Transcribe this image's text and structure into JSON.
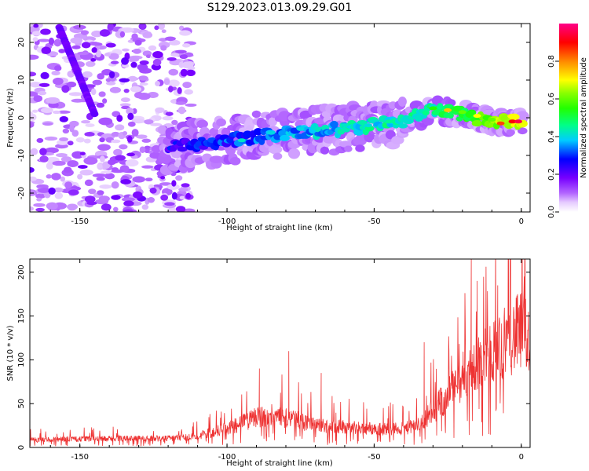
{
  "title": "S129.2023.013.09.29.G01",
  "chart_data": [
    {
      "type": "heatmap",
      "xlabel": "Height of straight line (km)",
      "ylabel": "Frequency (Hz)",
      "xlim": [
        -167,
        3
      ],
      "ylim": [
        -25,
        25
      ],
      "xticks": [
        -150,
        -100,
        -50,
        0
      ],
      "yticks": [
        -20,
        -10,
        0,
        10,
        20
      ],
      "colorbar": {
        "label": "Normalized spectral amplitude",
        "ticks": [
          0,
          0.2,
          0.4,
          0.6,
          0.8
        ],
        "range": [
          0,
          1
        ],
        "colors": [
          "#ffffff",
          "#e6ccff",
          "#8800ff",
          "#0000ff",
          "#00ccff",
          "#00ff66",
          "#66ff00",
          "#ffff00",
          "#ff8800",
          "#ff0000",
          "#ff0088"
        ]
      },
      "ridge": {
        "description_points_x": [
          -120,
          -100,
          -80,
          -60,
          -40,
          -30,
          -20,
          -10,
          -5,
          0
        ],
        "description_points_y": [
          -8,
          -6,
          -4,
          -3,
          -1,
          2,
          1,
          -1,
          -1,
          -1
        ],
        "peak_amplitude": 0.95
      },
      "diagonal_streak": {
        "x": [
          -157,
          -145
        ],
        "y": [
          24,
          1
        ]
      }
    },
    {
      "type": "line",
      "xlabel": "Height of straight line (km)",
      "ylabel": "SNR (10 * v/v)",
      "xlim": [
        -167,
        3
      ],
      "ylim": [
        0,
        215
      ],
      "xticks": [
        -150,
        -100,
        -50,
        0
      ],
      "yticks": [
        0,
        50,
        100,
        150,
        200
      ],
      "color": "#ee3333",
      "envelope": {
        "x": [
          -167,
          -140,
          -120,
          -110,
          -100,
          -90,
          -85,
          -80,
          -70,
          -60,
          -50,
          -40,
          -35,
          -30,
          -25,
          -20,
          -15,
          -10,
          -5,
          0,
          3
        ],
        "y": [
          10,
          12,
          12,
          15,
          25,
          40,
          45,
          40,
          30,
          28,
          25,
          25,
          30,
          50,
          70,
          95,
          110,
          125,
          145,
          155,
          150
        ]
      },
      "peaks": [
        {
          "x": -89,
          "y": 90
        },
        {
          "x": -79,
          "y": 110
        },
        {
          "x": -68,
          "y": 85
        },
        {
          "x": -33,
          "y": 120
        },
        {
          "x": -17,
          "y": 215
        },
        {
          "x": -15,
          "y": 190
        },
        {
          "x": -8,
          "y": 185
        },
        {
          "x": 1,
          "y": 195
        }
      ]
    }
  ]
}
